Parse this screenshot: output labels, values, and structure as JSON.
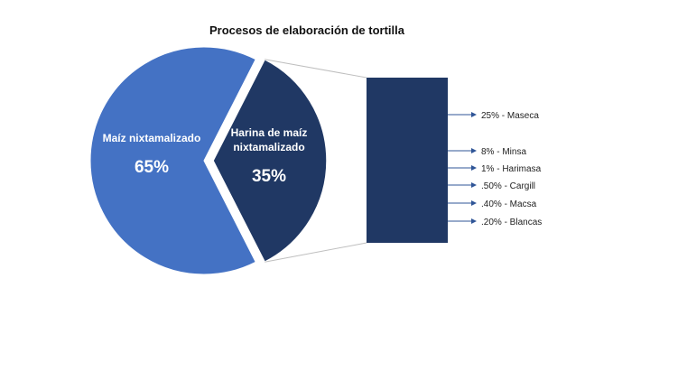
{
  "chart_data": {
    "type": "bar-of-pie",
    "title": "Procesos de elaboración de tortilla",
    "colors": {
      "main": "#4472c4",
      "secondary": "#203864",
      "connector": "#bfbfbf",
      "arrow": "#2f5597"
    },
    "slices": [
      {
        "name": "Maíz nixtamalizado",
        "label_lines": [
          "Maíz nixtamalizado"
        ],
        "value_label": "65%",
        "value": 65
      },
      {
        "name": "Harina de maíz nixtamalizado",
        "label_lines": [
          "Harina de maíz",
          "nixtamalizado"
        ],
        "value_label": "35%",
        "value": 35
      }
    ],
    "breakdown": [
      {
        "label": "25% - Maseca"
      },
      {
        "label": "8% - Minsa"
      },
      {
        "label": "1% - Harimasa"
      },
      {
        "label": ".50% - Cargill"
      },
      {
        "label": ".40% - Macsa"
      },
      {
        "label": ".20% - Blancas"
      }
    ]
  }
}
